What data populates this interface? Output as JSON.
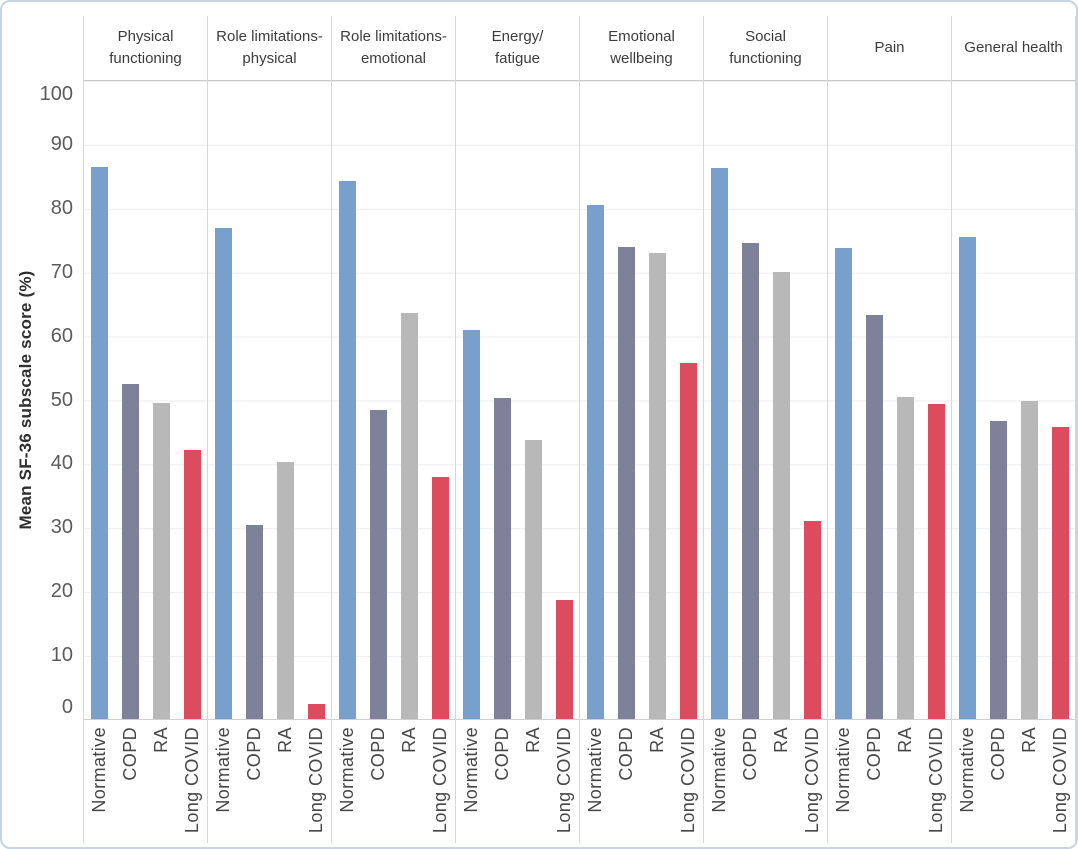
{
  "figure": {
    "y_axis_title": "Mean SF-36 subscale score (%)"
  },
  "chart_data": {
    "type": "bar",
    "title": "",
    "xlabel": "",
    "ylabel": "Mean SF-36 subscale score (%)",
    "ylim": [
      0,
      100
    ],
    "y_ticks": [
      100,
      90,
      80,
      70,
      60,
      50,
      40,
      30,
      20,
      10,
      0
    ],
    "grid": "horizontal gridlines every 10, light gray",
    "legend_position": "none (group labels repeated under bars in each panel)",
    "categories": [
      "Physical functioning",
      "Role limitations-physical",
      "Role limitations-emotional",
      "Energy/fatigue",
      "Emotional wellbeing",
      "Social functioning",
      "Pain",
      "General health"
    ],
    "category_header_lines": [
      [
        "Physical",
        "functioning"
      ],
      [
        "Role limitations-",
        "physical"
      ],
      [
        "Role limitations-",
        "emotional"
      ],
      [
        "Energy/",
        "fatigue"
      ],
      [
        "Emotional",
        "wellbeing"
      ],
      [
        "Social",
        "functioning"
      ],
      [
        "Pain"
      ],
      [
        "General health"
      ]
    ],
    "series": [
      {
        "name": "Normative",
        "color": "#79a0cc",
        "values": [
          86.5,
          77.0,
          84.3,
          60.9,
          80.5,
          86.3,
          73.9,
          75.5
        ]
      },
      {
        "name": "COPD",
        "color": "#7e8198",
        "values": [
          52.5,
          30.4,
          48.5,
          50.3,
          74.0,
          74.6,
          63.4,
          46.7
        ]
      },
      {
        "name": "RA",
        "color": "#b8b8b8",
        "values": [
          49.6,
          40.3,
          63.6,
          43.7,
          73.0,
          70.0,
          50.4,
          49.8
        ]
      },
      {
        "name": "Long COVID",
        "color": "#dc4b5e",
        "values": [
          42.2,
          2.4,
          37.9,
          18.6,
          55.8,
          31.0,
          49.3,
          45.8
        ]
      }
    ],
    "colors": {
      "normative_blue": "#79a0cc",
      "copd_slate": "#7e8198",
      "ra_gray": "#b8b8b8",
      "long_covid_red": "#dc4b5e",
      "gridline": "#ededed",
      "panel_separator": "#d6d6d6",
      "axis_baseline": "#cfcfcf",
      "outer_border": "#c7d5e2"
    }
  }
}
